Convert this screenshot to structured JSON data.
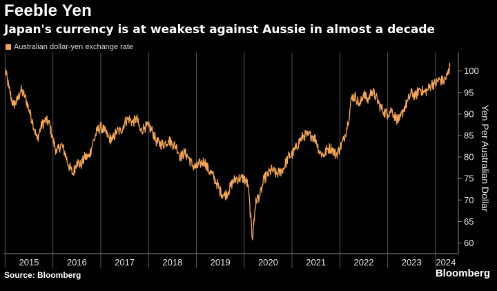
{
  "title": "Feeble Yen",
  "subtitle": "Japan's currency is at weakest against Aussie in almost a decade",
  "legend": "Australian dollar-yen exchange rate",
  "source": "Source: Bloomberg",
  "brand": "Bloomberg",
  "colors": {
    "background": "#000000",
    "line": "#f3a65a",
    "grid": "#555555",
    "text": "#e8e8e8"
  },
  "chart_data": {
    "type": "line",
    "title": "Feeble Yen",
    "subtitle": "Japan's currency is at weakest against Aussie in almost a decade",
    "xlabel": "",
    "ylabel": "Yen Per Australian Dollar",
    "ylim": [
      58,
      103
    ],
    "xlim": [
      2014.98,
      2024.42
    ],
    "yticks": [
      60,
      65,
      70,
      75,
      80,
      85,
      90,
      95,
      100
    ],
    "xticks": [
      "2015",
      "2016",
      "2017",
      "2018",
      "2019",
      "2020",
      "2021",
      "2022",
      "2023",
      "2024"
    ],
    "grid": "vertical year gridlines",
    "legend_position": "top-left",
    "series": [
      {
        "name": "Australian dollar-yen exchange rate",
        "x": [
          2015.0,
          2015.08,
          2015.17,
          2015.25,
          2015.33,
          2015.42,
          2015.5,
          2015.58,
          2015.67,
          2015.75,
          2015.83,
          2015.92,
          2016.0,
          2016.08,
          2016.17,
          2016.25,
          2016.33,
          2016.42,
          2016.5,
          2016.58,
          2016.67,
          2016.75,
          2016.83,
          2016.92,
          2017.0,
          2017.08,
          2017.17,
          2017.25,
          2017.33,
          2017.42,
          2017.5,
          2017.58,
          2017.67,
          2017.75,
          2017.83,
          2017.92,
          2018.0,
          2018.08,
          2018.17,
          2018.25,
          2018.33,
          2018.42,
          2018.5,
          2018.58,
          2018.67,
          2018.75,
          2018.83,
          2018.92,
          2019.0,
          2019.08,
          2019.17,
          2019.25,
          2019.33,
          2019.42,
          2019.5,
          2019.58,
          2019.67,
          2019.75,
          2019.83,
          2019.92,
          2020.0,
          2020.08,
          2020.17,
          2020.22,
          2020.25,
          2020.33,
          2020.42,
          2020.5,
          2020.58,
          2020.67,
          2020.75,
          2020.83,
          2020.92,
          2021.0,
          2021.08,
          2021.17,
          2021.25,
          2021.33,
          2021.42,
          2021.5,
          2021.58,
          2021.67,
          2021.75,
          2021.83,
          2021.92,
          2022.0,
          2022.08,
          2022.17,
          2022.25,
          2022.33,
          2022.42,
          2022.5,
          2022.58,
          2022.67,
          2022.75,
          2022.83,
          2022.92,
          2023.0,
          2023.08,
          2023.17,
          2023.25,
          2023.33,
          2023.42,
          2023.5,
          2023.58,
          2023.67,
          2023.75,
          2023.83,
          2023.92,
          2024.0,
          2024.08,
          2024.17,
          2024.25,
          2024.3
        ],
        "values": [
          100.5,
          96,
          92,
          93,
          95.5,
          94,
          91,
          88,
          84,
          87,
          88.5,
          88,
          84,
          81,
          83,
          81,
          78,
          76,
          79,
          78,
          80,
          80,
          83,
          86,
          87,
          86,
          84.5,
          84,
          86,
          86,
          88,
          89,
          88,
          89,
          86,
          87,
          87,
          86,
          83.5,
          83,
          83,
          84,
          83,
          82.5,
          80,
          81,
          80,
          78,
          77.5,
          78.5,
          79,
          77,
          76,
          74,
          72,
          71,
          72,
          74,
          75,
          75,
          75,
          73.5,
          61,
          67,
          70,
          71,
          75,
          76,
          77,
          76,
          76.5,
          77.5,
          80,
          80.5,
          82,
          84,
          85,
          85,
          85,
          84,
          81,
          80.5,
          82,
          82,
          80.5,
          82,
          84,
          88,
          94,
          94,
          92,
          95,
          93,
          95.5,
          94,
          92,
          90.5,
          90,
          91,
          89,
          88.5,
          91,
          93,
          95,
          94,
          96,
          95,
          95.5,
          97,
          97,
          98,
          97.5,
          99,
          101
        ]
      }
    ]
  }
}
